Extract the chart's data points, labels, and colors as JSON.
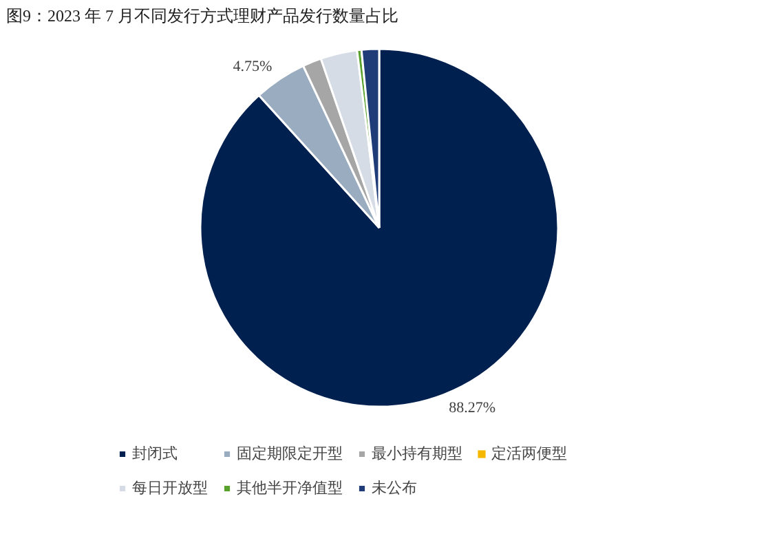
{
  "chart_data": {
    "type": "pie",
    "title": "图9：2023 年 7 月不同发行方式理财产品发行数量占比",
    "categories": [
      "封闭式",
      "固定期限定开型",
      "最小持有期型",
      "定活两便型",
      "每日开放型",
      "其他半开净值型",
      "未公布"
    ],
    "values": [
      88.27,
      4.75,
      1.7,
      null,
      3.3,
      0.4,
      1.58
    ],
    "colors": [
      "#002050",
      "#9aacbf",
      "#a6a6a6",
      "#f5b800",
      "#d6dce5",
      "#5aa02c",
      "#1f3c78"
    ],
    "value_labels": [
      "88.27%",
      "4.75%",
      null,
      null,
      null,
      null,
      null
    ],
    "legend": "bottom"
  }
}
